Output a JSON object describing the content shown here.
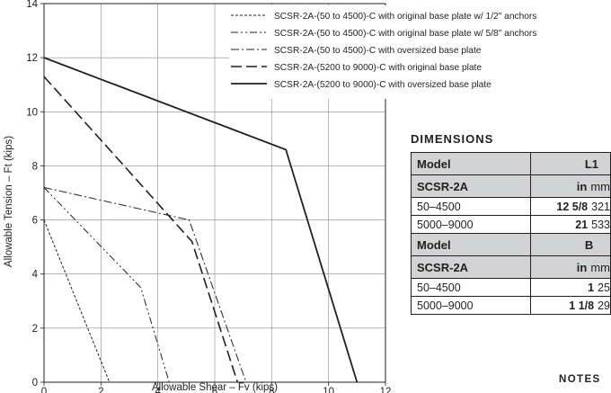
{
  "chart_data": {
    "type": "line",
    "xlabel": "Allowable Shear – Fv (kips)",
    "ylabel": "Allowable Tension – Ft (kips)",
    "xlim": [
      0,
      12
    ],
    "ylim": [
      0,
      14
    ],
    "xticks": [
      "0",
      "2",
      "4",
      "6",
      "8",
      "10",
      "12"
    ],
    "yticks": [
      "0",
      "2",
      "4",
      "6",
      "8",
      "10",
      "12",
      "14"
    ],
    "grid": true,
    "legend_position": "top-right",
    "series": [
      {
        "name": "SCSR-2A-(50 to 4500)-C with original base plate w/ 1/2\" anchors",
        "style": "dotted",
        "x": [
          0,
          2.3
        ],
        "y": [
          6.0,
          0
        ]
      },
      {
        "name": "SCSR-2A-(50 to 4500)-C with original base plate w/ 5/8\" anchors",
        "style": "dash-dot-dot",
        "x": [
          0,
          3.4,
          4.4
        ],
        "y": [
          7.2,
          3.5,
          0
        ]
      },
      {
        "name": "SCSR-2A-(50 to 4500)-C with oversized base plate",
        "style": "dash-dot",
        "x": [
          0,
          5.1,
          7.1
        ],
        "y": [
          7.2,
          6.0,
          0
        ]
      },
      {
        "name": "SCSR-2A-(5200 to 9000)-C with original base plate",
        "style": "long-dash",
        "x": [
          0,
          5.2,
          6.8
        ],
        "y": [
          11.3,
          5.2,
          0
        ]
      },
      {
        "name": "SCSR-2A-(5200 to 9000)-C with oversized base plate",
        "style": "solid",
        "x": [
          0,
          8.5,
          11.0
        ],
        "y": [
          12.0,
          8.6,
          0
        ]
      }
    ]
  },
  "dimensions": {
    "heading": "DIMENSIONS",
    "table1": {
      "header": [
        "Model",
        "L1"
      ],
      "subheader": [
        "SCSR-2A",
        "in",
        "mm"
      ],
      "rows": [
        {
          "model": "50–4500",
          "in": "12 5/8",
          "mm": "321"
        },
        {
          "model": "5000–9000",
          "in": "21",
          "mm": "533"
        }
      ]
    },
    "table2": {
      "header": [
        "Model",
        "B"
      ],
      "subheader": [
        "SCSR-2A",
        "in",
        "mm"
      ],
      "rows": [
        {
          "model": "50–4500",
          "in": "1",
          "mm": "25"
        },
        {
          "model": "5000–9000",
          "in": "1 1/8",
          "mm": "29"
        }
      ]
    }
  },
  "notes": {
    "heading": "NOTES"
  }
}
